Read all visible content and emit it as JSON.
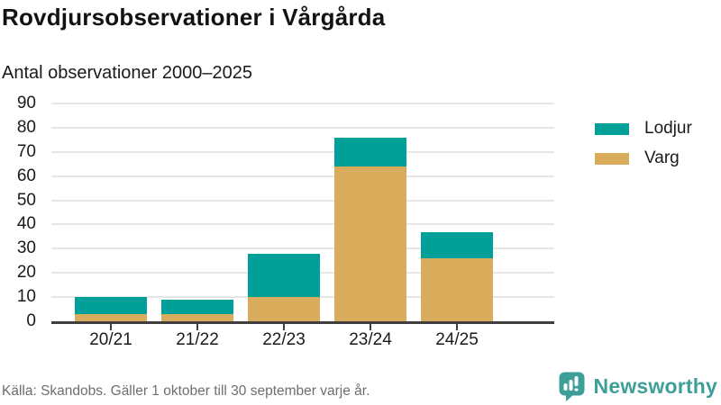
{
  "header": {
    "title": "Rovdjursobservationer i Vårgårda",
    "subtitle": "Antal observationer 2000–2025"
  },
  "chart_data": {
    "type": "bar",
    "stacked": true,
    "title": "Rovdjursobservationer i Vårgårda",
    "subtitle": "Antal observationer 2000–2025",
    "categories": [
      "20/21",
      "21/22",
      "22/23",
      "23/24",
      "24/25"
    ],
    "series": [
      {
        "name": "Varg",
        "color": "#d9ac5c",
        "values": [
          3,
          3,
          10,
          64,
          26
        ]
      },
      {
        "name": "Lodjur",
        "color": "#00a098",
        "values": [
          7,
          6,
          18,
          12,
          11
        ]
      }
    ],
    "totals": [
      10,
      9,
      28,
      76,
      37
    ],
    "xlabel": "",
    "ylabel": "",
    "ylim": [
      0,
      90
    ],
    "yticks": [
      0,
      10,
      20,
      30,
      40,
      50,
      60,
      70,
      80,
      90
    ],
    "grid": true,
    "legend_position": "right",
    "legend": [
      {
        "label": "Lodjur",
        "color": "#00a098"
      },
      {
        "label": "Varg",
        "color": "#d9ac5c"
      }
    ]
  },
  "footer": {
    "source": "Källa: Skandobs. Gäller 1 oktober till 30 september varje år.",
    "brand": "Newsworthy"
  },
  "colors": {
    "lodjur": "#00a098",
    "varg": "#d9ac5c",
    "brand_teal": "#3d9f98",
    "axis": "#3f3f3f",
    "gridline": "#e6e6e6",
    "text": "#1a1a1a",
    "muted_text": "#6e6e6e"
  }
}
